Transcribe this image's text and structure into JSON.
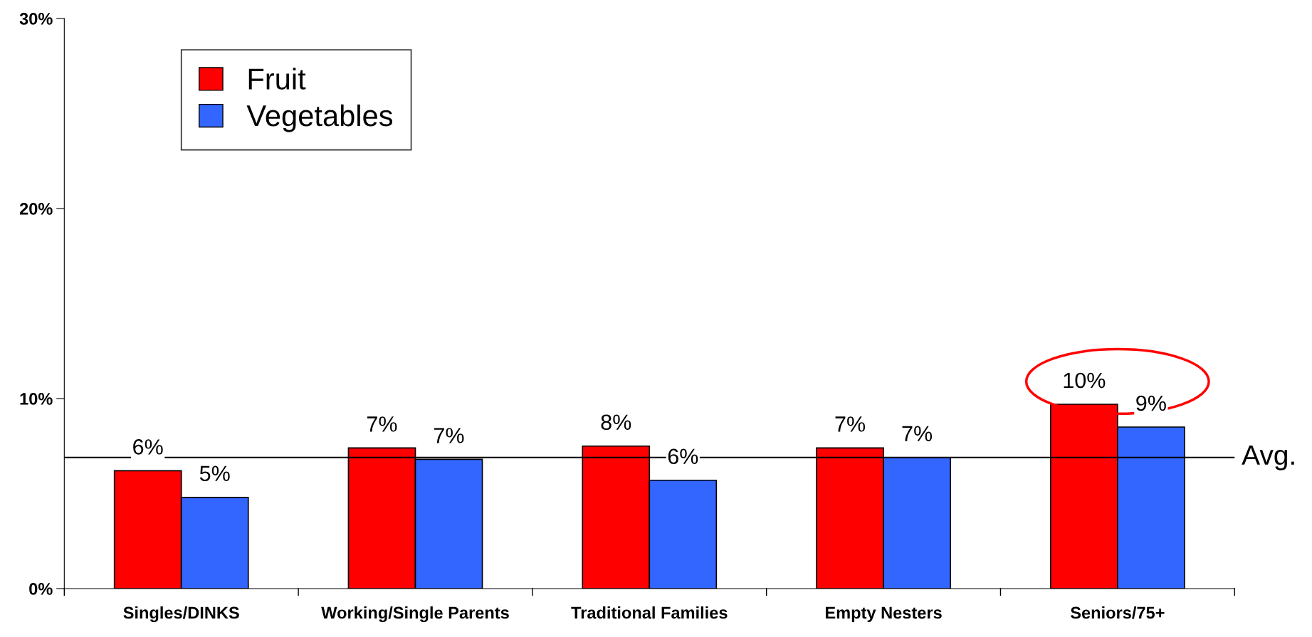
{
  "chart_data": {
    "type": "bar",
    "categories": [
      "Singles/DINKS",
      "Working/Single Parents",
      "Traditional Families",
      "Empty Nesters",
      "Seniors/75+"
    ],
    "series": [
      {
        "name": "Fruit",
        "color": "#ff0000",
        "values": [
          6.2,
          7.4,
          7.5,
          7.4,
          9.7
        ],
        "value_labels": [
          "6%",
          "7%",
          "8%",
          "7%",
          "10%"
        ]
      },
      {
        "name": "Vegetables",
        "color": "#3366ff",
        "values": [
          4.8,
          6.8,
          5.7,
          6.9,
          8.5
        ],
        "value_labels": [
          "5%",
          "7%",
          "6%",
          "7%",
          "9%"
        ]
      }
    ],
    "ylim": [
      0,
      30
    ],
    "yticks": [
      {
        "value": 0,
        "label": "0%"
      },
      {
        "value": 10,
        "label": "10%"
      },
      {
        "value": 20,
        "label": "20%"
      },
      {
        "value": 30,
        "label": "30%"
      }
    ],
    "ref_lines": [
      {
        "axis": "y",
        "value": 6.9,
        "label": "Avg.",
        "color": "#000000"
      }
    ],
    "grid": false,
    "legend": "top left"
  }
}
